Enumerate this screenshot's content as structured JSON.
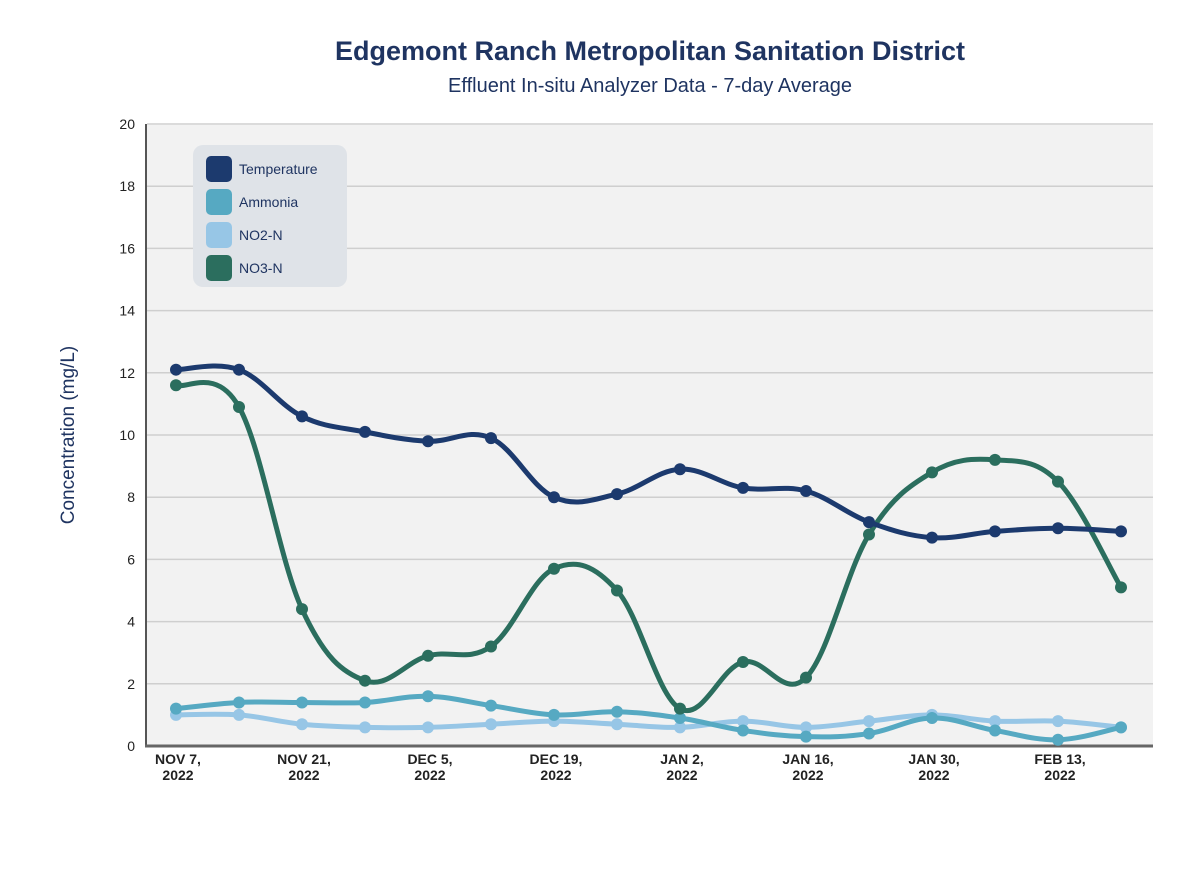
{
  "chart_data": {
    "type": "line",
    "title": "Edgemont Ranch Metropolitan Sanitation District",
    "subtitle": "Effluent In-situ Analyzer Data - 7-day Average",
    "xlabel": "",
    "ylabel": "Concentration (mg/L)",
    "ylim": [
      0,
      20
    ],
    "yticks": [
      "0",
      "2",
      "4",
      "6",
      "8",
      "10",
      "12",
      "14",
      "16",
      "18",
      "20"
    ],
    "grid": true,
    "legend_position": "top-left",
    "xtick_labels": [
      [
        "NOV 7,",
        "2022"
      ],
      [
        "NOV 21,",
        "2022"
      ],
      [
        "DEC 5,",
        "2022"
      ],
      [
        "DEC 19,",
        "2022"
      ],
      [
        "JAN 2,",
        "2022"
      ],
      [
        "JAN 16,",
        "2022"
      ],
      [
        "JAN 30,",
        "2022"
      ],
      [
        "FEB 13,",
        "2022"
      ]
    ],
    "x_index": [
      0,
      1,
      2,
      3,
      4,
      5,
      6,
      7,
      8,
      9,
      10,
      11,
      12,
      13,
      14,
      15
    ],
    "xtick_at_index": [
      0,
      2,
      4,
      6,
      8,
      10,
      12,
      14
    ],
    "series": [
      {
        "name": "Temperature",
        "color": "#1c3a6e",
        "values": [
          12.1,
          12.1,
          10.6,
          10.1,
          9.8,
          9.9,
          8.0,
          8.1,
          8.9,
          8.3,
          8.2,
          7.2,
          6.7,
          6.9,
          7.0,
          6.9
        ]
      },
      {
        "name": "Ammonia",
        "color": "#56a9c2",
        "values": [
          1.2,
          1.4,
          1.4,
          1.4,
          1.6,
          1.3,
          1.0,
          1.1,
          0.9,
          0.5,
          0.3,
          0.4,
          0.9,
          0.5,
          0.2,
          0.6
        ]
      },
      {
        "name": "NO2-N",
        "color": "#97c6e6",
        "values": [
          1.0,
          1.0,
          0.7,
          0.6,
          0.6,
          0.7,
          0.8,
          0.7,
          0.6,
          0.8,
          0.6,
          0.8,
          1.0,
          0.8,
          0.8,
          0.6
        ]
      },
      {
        "name": "NO3-N",
        "color": "#2b6e5e",
        "values": [
          11.6,
          10.9,
          4.4,
          2.1,
          2.9,
          3.2,
          5.7,
          5.0,
          1.2,
          2.7,
          2.2,
          6.8,
          8.8,
          9.2,
          8.5,
          5.1
        ]
      }
    ]
  }
}
